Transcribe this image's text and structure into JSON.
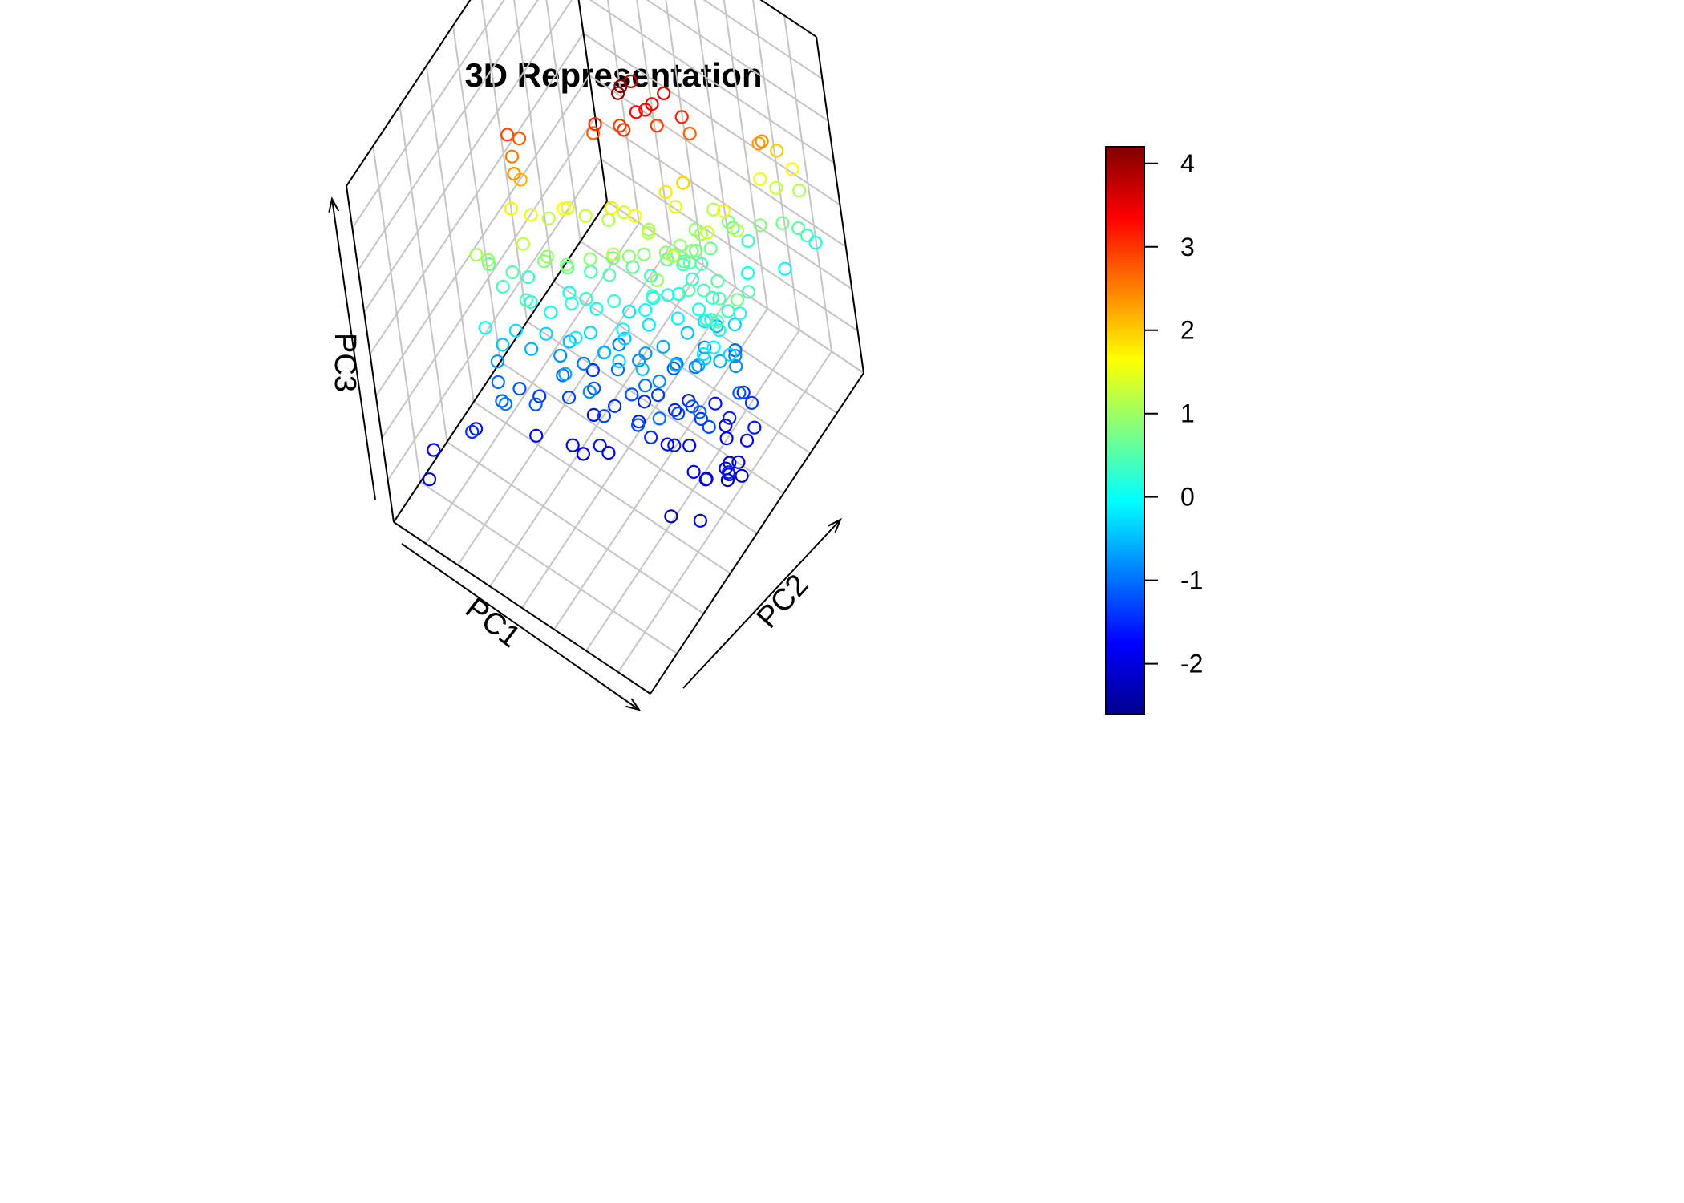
{
  "chart_data": {
    "type": "scatter",
    "projection": "3d",
    "title": "3D Representation",
    "axes": {
      "x": {
        "label": "PC1"
      },
      "y": {
        "label": "PC2"
      },
      "z": {
        "label": "PC3"
      }
    },
    "grid": true,
    "marker": "open-circle",
    "color_scale": {
      "name": "jet",
      "variable": "PC3",
      "range": [
        -2.6,
        4.2
      ],
      "ticks": [
        "4",
        "3",
        "2",
        "1",
        "0",
        "-1",
        "-2"
      ],
      "colors": [
        "#00008f",
        "#0000ff",
        "#0080ff",
        "#00ffff",
        "#80ff80",
        "#ffff00",
        "#ff8000",
        "#ff0000",
        "#800000"
      ]
    },
    "points_pc1_pc2_pc3": [
      [
        0.1,
        0.62,
        4.2
      ],
      [
        0.08,
        0.62,
        4.0
      ],
      [
        0.05,
        0.72,
        3.65
      ],
      [
        0.05,
        0.65,
        3.0
      ],
      [
        0.1,
        0.68,
        3.35
      ],
      [
        0.12,
        0.71,
        3.3
      ],
      [
        0.15,
        0.72,
        3.45
      ],
      [
        0.18,
        0.76,
        3.55
      ],
      [
        -0.05,
        0.6,
        3.1
      ],
      [
        0.02,
        0.66,
        2.95
      ],
      [
        0.15,
        0.73,
        2.95
      ],
      [
        0.24,
        0.78,
        3.12
      ],
      [
        0.25,
        0.8,
        2.7
      ],
      [
        -0.36,
        0.43,
        2.9
      ],
      [
        -0.33,
        0.46,
        2.75
      ],
      [
        -0.34,
        0.42,
        2.55
      ],
      [
        -0.09,
        0.62,
        2.7
      ],
      [
        0.48,
        0.95,
        2.4
      ],
      [
        0.46,
        0.95,
        2.3
      ],
      [
        -0.32,
        0.4,
        2.35
      ],
      [
        -0.31,
        0.42,
        2.15
      ],
      [
        0.5,
        1.0,
        2.0
      ],
      [
        0.55,
        1.02,
        1.65
      ],
      [
        0.44,
        0.95,
        1.5
      ],
      [
        0.49,
        0.98,
        1.3
      ],
      [
        0.55,
        1.04,
        1.1
      ],
      [
        -0.33,
        0.37,
        1.75
      ],
      [
        -0.28,
        0.42,
        1.5
      ],
      [
        -0.25,
        0.48,
        1.2
      ],
      [
        -0.18,
        0.52,
        1.4
      ],
      [
        -0.12,
        0.55,
        1.25
      ],
      [
        -0.05,
        0.6,
        1.1
      ],
      [
        0.02,
        0.62,
        1.35
      ],
      [
        0.1,
        0.66,
        1.0
      ],
      [
        0.2,
        0.72,
        1.45
      ],
      [
        0.25,
        0.76,
        0.9
      ],
      [
        0.3,
        0.82,
        1.15
      ],
      [
        0.35,
        0.86,
        0.7
      ],
      [
        0.38,
        0.9,
        0.3
      ],
      [
        0.34,
        0.85,
        0.85
      ],
      [
        -0.4,
        0.28,
        0.95
      ],
      [
        -0.42,
        0.3,
        0.7
      ],
      [
        -0.36,
        0.3,
        0.4
      ],
      [
        -0.38,
        0.2,
        0.0
      ],
      [
        -0.3,
        0.38,
        0.35
      ],
      [
        -0.22,
        0.4,
        0.8
      ],
      [
        -0.15,
        0.45,
        0.6
      ],
      [
        -0.08,
        0.5,
        0.45
      ],
      [
        0.0,
        0.55,
        0.7
      ],
      [
        0.07,
        0.58,
        0.55
      ],
      [
        0.12,
        0.62,
        0.3
      ],
      [
        0.18,
        0.66,
        0.6
      ],
      [
        0.22,
        0.7,
        0.4
      ],
      [
        -0.26,
        0.34,
        0.15
      ],
      [
        -0.18,
        0.36,
        0.05
      ],
      [
        -0.1,
        0.4,
        0.25
      ],
      [
        -0.02,
        0.45,
        0.1
      ],
      [
        0.05,
        0.48,
        0.3
      ],
      [
        0.14,
        0.55,
        0.0
      ],
      [
        0.2,
        0.62,
        0.12
      ],
      [
        0.26,
        0.7,
        0.2
      ],
      [
        0.3,
        0.74,
        1.05
      ],
      [
        0.28,
        0.72,
        0.75
      ],
      [
        0.26,
        0.7,
        0.55
      ],
      [
        0.24,
        0.68,
        0.95
      ],
      [
        0.22,
        0.66,
        0.8
      ],
      [
        0.29,
        0.73,
        0.45
      ],
      [
        0.32,
        0.76,
        0.7
      ],
      [
        0.25,
        0.68,
        0.65
      ],
      [
        0.2,
        0.64,
        0.9
      ],
      [
        -0.05,
        0.48,
        0.9
      ],
      [
        0.12,
        0.6,
        0.85
      ],
      [
        0.0,
        0.52,
        0.5
      ],
      [
        -0.16,
        0.45,
        0.05
      ],
      [
        0.06,
        0.54,
        -0.2
      ],
      [
        -0.34,
        0.24,
        -0.45
      ],
      [
        -0.3,
        0.28,
        -0.25
      ],
      [
        -0.36,
        0.22,
        -0.75
      ],
      [
        -0.35,
        0.2,
        -1.05
      ],
      [
        -0.25,
        0.3,
        -0.6
      ],
      [
        -0.2,
        0.34,
        -0.35
      ],
      [
        -0.16,
        0.36,
        -0.8
      ],
      [
        -0.12,
        0.38,
        -0.5
      ],
      [
        -0.08,
        0.4,
        -0.95
      ],
      [
        -0.04,
        0.42,
        -0.3
      ],
      [
        0.0,
        0.44,
        -0.7
      ],
      [
        0.04,
        0.46,
        -1.05
      ],
      [
        0.08,
        0.48,
        -0.4
      ],
      [
        0.12,
        0.5,
        -0.85
      ],
      [
        0.16,
        0.54,
        -0.2
      ],
      [
        0.2,
        0.56,
        -0.65
      ],
      [
        0.24,
        0.58,
        -1.0
      ],
      [
        0.28,
        0.62,
        -0.45
      ],
      [
        0.32,
        0.66,
        -0.85
      ],
      [
        0.36,
        0.7,
        -0.5
      ],
      [
        0.4,
        0.74,
        -1.1
      ],
      [
        -0.1,
        0.32,
        -1.3
      ],
      [
        -0.02,
        0.38,
        -1.2
      ],
      [
        0.06,
        0.4,
        -1.45
      ],
      [
        0.12,
        0.44,
        -1.25
      ],
      [
        -0.22,
        0.28,
        -1.4
      ],
      [
        0.2,
        0.5,
        -1.35
      ],
      [
        0.3,
        0.56,
        -1.5
      ],
      [
        0.38,
        0.62,
        -1.65
      ],
      [
        -0.06,
        0.36,
        -0.15
      ],
      [
        0.1,
        0.46,
        -0.05
      ],
      [
        0.26,
        0.6,
        -0.1
      ],
      [
        0.18,
        0.56,
        0.35
      ],
      [
        -0.28,
        0.24,
        -1.2
      ],
      [
        0.02,
        0.42,
        -0.55
      ],
      [
        0.14,
        0.52,
        -0.75
      ],
      [
        0.22,
        0.58,
        -1.15
      ],
      [
        0.34,
        0.66,
        -0.25
      ],
      [
        -0.14,
        0.34,
        -1.05
      ],
      [
        0.44,
        0.7,
        -0.9
      ],
      [
        0.44,
        0.72,
        -0.35
      ],
      [
        0.42,
        0.62,
        -2.0
      ],
      [
        0.46,
        0.58,
        -1.95
      ],
      [
        0.48,
        0.56,
        -2.3
      ],
      [
        0.5,
        0.52,
        -2.4
      ],
      [
        0.52,
        0.5,
        -2.0
      ],
      [
        0.45,
        0.46,
        -2.2
      ],
      [
        0.49,
        0.42,
        -1.9
      ],
      [
        0.53,
        0.56,
        -2.15
      ],
      [
        0.56,
        0.54,
        -2.25
      ],
      [
        0.45,
        0.4,
        -1.75
      ],
      [
        0.55,
        0.6,
        -1.85
      ],
      [
        0.47,
        0.6,
        -1.6
      ],
      [
        -0.4,
        0.1,
        -1.65
      ],
      [
        -0.38,
        0.06,
        -1.45
      ],
      [
        -0.52,
        -0.02,
        -1.8
      ],
      [
        -0.5,
        -0.08,
        -2.05
      ],
      [
        -0.18,
        0.2,
        -1.7
      ],
      [
        -0.05,
        0.26,
        -1.85
      ],
      [
        -0.02,
        0.28,
        -2.05
      ],
      [
        0.56,
        0.3,
        -1.95
      ],
      [
        0.1,
        0.3,
        -1.8
      ],
      [
        0.4,
        0.52,
        -1.4
      ],
      [
        0.42,
        0.5,
        -1.1
      ],
      [
        0.58,
        0.46,
        -1.75
      ],
      [
        0.6,
        0.44,
        -1.55
      ],
      [
        0.4,
        0.3,
        -2.3
      ],
      [
        0.08,
        0.28,
        -1.6
      ],
      [
        0.3,
        0.4,
        -1.05
      ],
      [
        0.32,
        0.48,
        -1.3
      ],
      [
        0.36,
        0.52,
        -1.25
      ],
      [
        0.34,
        0.42,
        -1.6
      ],
      [
        0.38,
        0.46,
        -1.7
      ],
      [
        0.26,
        0.38,
        -1.45
      ],
      [
        0.28,
        0.44,
        -1.85
      ],
      [
        0.46,
        0.5,
        -1.3
      ],
      [
        0.5,
        0.64,
        -1.2
      ],
      [
        0.54,
        0.66,
        -1.4
      ],
      [
        0.16,
        0.42,
        -1.6
      ],
      [
        0.06,
        0.34,
        -1.35
      ],
      [
        0.32,
        0.6,
        -0.95
      ],
      [
        0.18,
        0.46,
        -1.0
      ],
      [
        0.36,
        0.58,
        -0.7
      ],
      [
        -0.3,
        0.16,
        -1.1
      ],
      [
        -0.26,
        0.14,
        -0.95
      ],
      [
        -0.18,
        0.22,
        -1.15
      ],
      [
        0.22,
        0.36,
        -1.2
      ],
      [
        0.58,
        0.62,
        -1.6
      ],
      [
        0.42,
        0.56,
        -0.2
      ],
      [
        0.02,
        0.32,
        -0.85
      ],
      [
        0.34,
        0.64,
        0.1
      ],
      [
        0.38,
        0.68,
        0.25
      ],
      [
        0.4,
        0.7,
        0.55
      ],
      [
        0.36,
        0.66,
        0.45
      ],
      [
        0.24,
        0.64,
        0.15
      ],
      [
        0.16,
        0.58,
        0.15
      ],
      [
        -0.06,
        0.44,
        0.25
      ],
      [
        -0.24,
        0.3,
        0.45
      ],
      [
        -0.12,
        0.42,
        0.9
      ],
      [
        0.08,
        0.56,
        0.9
      ],
      [
        0.28,
        0.7,
        0.85
      ],
      [
        -0.44,
        0.26,
        1.05
      ],
      [
        0.46,
        0.9,
        0.85
      ],
      [
        0.52,
        0.96,
        0.75
      ],
      [
        0.56,
        1.0,
        0.55
      ],
      [
        0.58,
        1.02,
        0.35
      ],
      [
        0.6,
        1.04,
        0.15
      ],
      [
        0.52,
        0.94,
        -0.1
      ],
      [
        0.42,
        0.84,
        0.05
      ],
      [
        0.1,
        0.6,
        1.6
      ],
      [
        0.02,
        0.56,
        1.75
      ],
      [
        0.18,
        0.7,
        1.8
      ],
      [
        0.24,
        0.74,
        1.95
      ],
      [
        -0.16,
        0.48,
        1.65
      ],
      [
        0.0,
        0.52,
        -0.95
      ],
      [
        0.44,
        0.62,
        -0.6
      ],
      [
        0.48,
        0.66,
        -0.8
      ],
      [
        0.4,
        0.58,
        -0.45
      ],
      [
        0.12,
        0.4,
        -0.35
      ],
      [
        -0.08,
        0.3,
        -0.65
      ],
      [
        0.3,
        0.52,
        -0.55
      ],
      [
        0.24,
        0.48,
        -0.85
      ],
      [
        0.2,
        0.44,
        -0.5
      ],
      [
        0.46,
        0.62,
        0.1
      ],
      [
        0.48,
        0.66,
        0.35
      ],
      [
        0.5,
        0.7,
        0.15
      ],
      [
        0.44,
        0.66,
        0.5
      ],
      [
        0.42,
        0.6,
        0.3
      ],
      [
        0.46,
        0.58,
        -0.05
      ],
      [
        0.5,
        0.62,
        -0.3
      ],
      [
        0.52,
        0.74,
        0.45
      ],
      [
        0.4,
        0.64,
        0.05
      ],
      [
        -0.34,
        0.34,
        0.55
      ],
      [
        -0.2,
        0.4,
        0.95
      ],
      [
        0.06,
        0.5,
        1.2
      ],
      [
        0.14,
        0.62,
        1.25
      ],
      [
        -0.28,
        0.36,
        1.2
      ],
      [
        0.36,
        0.72,
        1.35
      ],
      [
        0.4,
        0.78,
        1.6
      ],
      [
        0.44,
        0.8,
        1.2
      ],
      [
        -0.1,
        0.46,
        -1.45
      ],
      [
        0.14,
        0.48,
        -1.55
      ],
      [
        -0.02,
        0.36,
        -1.65
      ],
      [
        0.26,
        0.52,
        -1.6
      ],
      [
        0.48,
        0.68,
        -1.45
      ],
      [
        0.24,
        0.54,
        0.95
      ],
      [
        0.32,
        0.62,
        0.55
      ],
      [
        0.28,
        0.6,
        1.25
      ],
      [
        0.5,
        0.58,
        0.6
      ],
      [
        0.54,
        0.66,
        0.75
      ]
    ]
  }
}
